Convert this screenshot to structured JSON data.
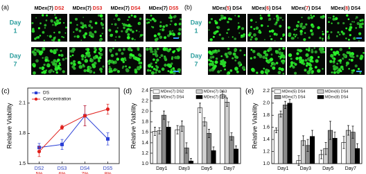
{
  "panel_a": {
    "label": "(a)",
    "highlight_color": "#e0201c",
    "headers": [
      [
        "MDex(7) ",
        "DS2"
      ],
      [
        "MDex(7) ",
        "DS3"
      ],
      [
        "MDex(7) ",
        "DS4"
      ],
      [
        "MDex(7) ",
        "DS5"
      ]
    ],
    "rows": [
      [
        "Day",
        "1"
      ],
      [
        "Day",
        "7"
      ]
    ]
  },
  "panel_b": {
    "label": "(b)",
    "highlight_color": "#e0201c",
    "headers": [
      [
        "MDex(",
        "5",
        ") DS4"
      ],
      [
        "MDex(",
        "6",
        ") DS4"
      ],
      [
        "MDex(",
        "7",
        ") DS4"
      ],
      [
        "MDex(",
        "8",
        ") DS4"
      ]
    ],
    "rows": [
      [
        "Day",
        "1"
      ],
      [
        "Day",
        "7"
      ]
    ]
  },
  "chart_data": [
    {
      "type": "line",
      "label": "(c)",
      "y_label": "Relative Viability",
      "categories": [
        "DS2",
        "DS3",
        "DS4",
        "DS5"
      ],
      "category_sublabels": [
        "5%",
        "6%",
        "7%",
        "8%"
      ],
      "category_color": "#2a3fbf",
      "sublabel_color": "#e0201c",
      "ylim": [
        1.5,
        2.25
      ],
      "yticks": [
        1.5,
        1.8,
        2.1
      ],
      "legend": "top-left",
      "series": [
        {
          "name": "DS",
          "color": "#2a3fd6",
          "marker": "square",
          "values": [
            1.66,
            1.69,
            1.975,
            1.745
          ],
          "errors": [
            0.04,
            0.05,
            0.1,
            0.06
          ]
        },
        {
          "name": "Concentration",
          "color": "#e0201c",
          "marker": "circle",
          "values": [
            1.62,
            1.86,
            1.975,
            2.04
          ],
          "errors": [
            0.05,
            0.02,
            0.1,
            0.05
          ]
        }
      ]
    },
    {
      "type": "bar",
      "label": "(d)",
      "y_label": "Relative Viability",
      "categories": [
        "Day1",
        "Day3",
        "Day5",
        "Day7"
      ],
      "ylim": [
        1.0,
        2.45
      ],
      "yticks": [
        {
          "value": 1.0,
          "label": "1.0"
        },
        1.2,
        1.4,
        1.6,
        1.8,
        {
          "value": 2.0,
          "label": "2.0"
        },
        2.2,
        2.4
      ],
      "legend": "top",
      "series": [
        {
          "name": "MDex(7) DS2",
          "color": "#ffffff",
          "values": [
            1.62,
            1.65,
            2.07,
            2.32
          ],
          "errors": [
            0.08,
            0.08,
            0.09,
            0.07
          ]
        },
        {
          "name": "MDex(7) DS3",
          "color": "#d0d0d0",
          "values": [
            1.63,
            1.72,
            1.8,
            2.18
          ],
          "errors": [
            0.06,
            0.1,
            0.08,
            0.08
          ]
        },
        {
          "name": "MDex(7) DS4",
          "color": "#8a8a8a",
          "values": [
            1.93,
            1.3,
            1.58,
            1.52
          ],
          "errors": [
            0.08,
            0.1,
            0.08,
            0.07
          ]
        },
        {
          "name": "MDex(7) DS5",
          "color": "#000000",
          "values": [
            1.7,
            1.05,
            1.25,
            1.28
          ],
          "errors": [
            0.1,
            0.05,
            0.07,
            0.06
          ]
        }
      ]
    },
    {
      "type": "bar",
      "label": "(e)",
      "y_label": "Relative Viability",
      "categories": [
        "Day1",
        "Day3",
        "Day5",
        "Day7"
      ],
      "ylim": [
        1.0,
        2.25
      ],
      "yticks": [
        {
          "value": 1.0,
          "label": "1.0"
        },
        1.2,
        1.4,
        1.6,
        1.8,
        {
          "value": 2.0,
          "label": "2.0"
        },
        2.2
      ],
      "legend": "top",
      "series": [
        {
          "name": "MDex(5) DS4",
          "color": "#ffffff",
          "values": [
            1.55,
            1.05,
            1.15,
            1.35
          ],
          "errors": [
            0.04,
            0.08,
            0.07,
            0.1
          ]
        },
        {
          "name": "MDex(6) DS4",
          "color": "#d0d0d0",
          "values": [
            1.82,
            1.38,
            1.25,
            1.55
          ],
          "errors": [
            0.05,
            0.08,
            0.1,
            0.08
          ]
        },
        {
          "name": "MDex(7) DS4",
          "color": "#8a8a8a",
          "values": [
            1.97,
            1.3,
            1.55,
            1.52
          ],
          "errors": [
            0.06,
            0.1,
            0.15,
            0.1
          ]
        },
        {
          "name": "MDex(8) DS4",
          "color": "#000000",
          "values": [
            2.0,
            1.45,
            1.42,
            1.25
          ],
          "errors": [
            0.06,
            0.1,
            0.1,
            0.08
          ]
        }
      ]
    }
  ]
}
